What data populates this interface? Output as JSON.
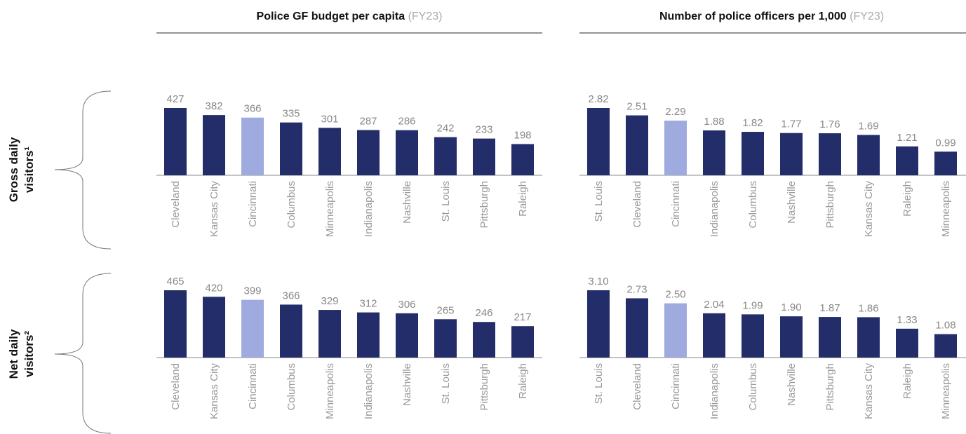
{
  "column_titles": [
    {
      "title": "Police GF budget per capita",
      "note": "(FY23)"
    },
    {
      "title": "Number of police officers per 1,000",
      "note": "(FY23)"
    }
  ],
  "row_labels": [
    [
      "Gross daily",
      "visitors¹"
    ],
    [
      "Net daily",
      "visitors²"
    ]
  ],
  "chart_data": [
    {
      "type": "bar",
      "categories": [
        "Cleveland",
        "Kansas City",
        "Cincinnati",
        "Columbus",
        "Minneapolis",
        "Indianapolis",
        "Nashville",
        "St. Louis",
        "Pittsburgh",
        "Raleigh"
      ],
      "values": [
        427,
        382,
        366,
        335,
        301,
        287,
        286,
        242,
        233,
        198
      ],
      "colors": [
        "#222d69",
        "#222d69",
        "#9fabde",
        "#222d69",
        "#222d69",
        "#222d69",
        "#222d69",
        "#222d69",
        "#222d69",
        "#222d69"
      ]
    },
    {
      "type": "bar",
      "categories": [
        "St. Louis",
        "Cleveland",
        "Cincinnati",
        "Indianapolis",
        "Columbus",
        "Nashville",
        "Pittsburgh",
        "Kansas City",
        "Raleigh",
        "Minneapolis"
      ],
      "values": [
        2.82,
        2.51,
        2.29,
        1.88,
        1.82,
        1.77,
        1.76,
        1.69,
        1.21,
        0.99
      ],
      "colors": [
        "#222d69",
        "#222d69",
        "#9fabde",
        "#222d69",
        "#222d69",
        "#222d69",
        "#222d69",
        "#222d69",
        "#222d69",
        "#222d69"
      ]
    },
    {
      "type": "bar",
      "categories": [
        "Cleveland",
        "Kansas City",
        "Cincinnati",
        "Columbus",
        "Minneapolis",
        "Indianapolis",
        "Nashville",
        "St. Louis",
        "Pittsburgh",
        "Raleigh"
      ],
      "values": [
        465,
        420,
        399,
        366,
        329,
        312,
        306,
        265,
        246,
        217
      ],
      "colors": [
        "#222d69",
        "#222d69",
        "#9fabde",
        "#222d69",
        "#222d69",
        "#222d69",
        "#222d69",
        "#222d69",
        "#222d69",
        "#222d69"
      ]
    },
    {
      "type": "bar",
      "categories": [
        "St. Louis",
        "Cleveland",
        "Cincinnati",
        "Indianapolis",
        "Columbus",
        "Nashville",
        "Pittsburgh",
        "Kansas City",
        "Raleigh",
        "Minneapolis"
      ],
      "values": [
        3.1,
        2.73,
        2.5,
        2.04,
        1.99,
        1.9,
        1.87,
        1.86,
        1.33,
        1.08
      ],
      "value_labels": [
        "3.10",
        "2.73",
        "2.50",
        "2.04",
        "1.99",
        "1.90",
        "1.87",
        "1.86",
        "1.33",
        "1.08"
      ],
      "colors": [
        "#222d69",
        "#222d69",
        "#9fabde",
        "#222d69",
        "#222d69",
        "#222d69",
        "#222d69",
        "#222d69",
        "#222d69",
        "#222d69"
      ]
    }
  ]
}
